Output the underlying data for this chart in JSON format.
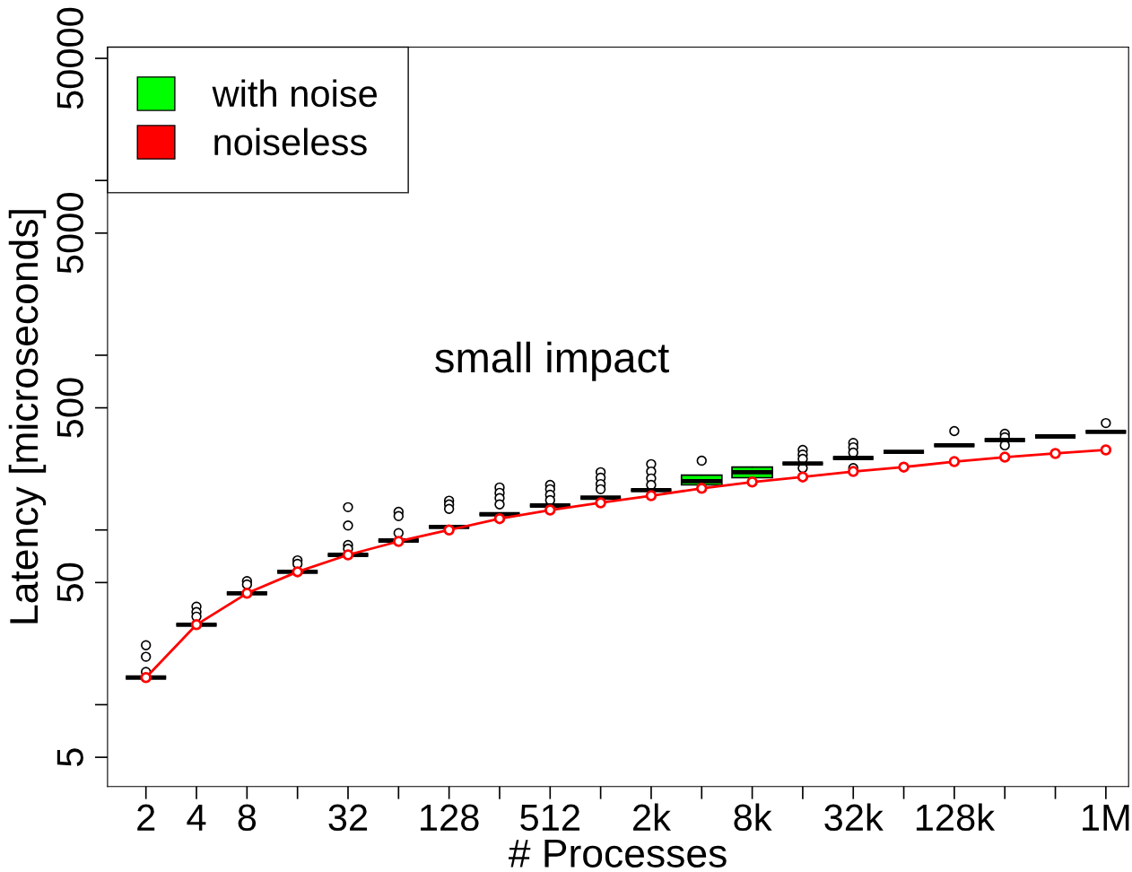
{
  "chart_data": {
    "type": "box",
    "xlabel": "# Processes",
    "ylabel": "Latency [microseconds]",
    "annotations": [
      "small impact"
    ],
    "categories": [
      "2",
      "4",
      "8",
      null,
      "32",
      null,
      "128",
      null,
      "512",
      null,
      "2k",
      null,
      "8k",
      null,
      "32k",
      null,
      "128k",
      null,
      null,
      "1M"
    ],
    "log": true,
    "ylim": [
      3.4,
      58000
    ],
    "yticks": [
      5,
      {
        "value": 10,
        "label": null
      },
      50,
      {
        "value": 100,
        "label": null
      },
      500,
      {
        "value": 1000,
        "label": null
      },
      5000,
      {
        "value": 10000,
        "label": null
      },
      50000
    ],
    "legend": "top left",
    "grid": false,
    "series": [
      {
        "name": "with noise",
        "color": "#00ff00",
        "colors": [
          "#000000",
          "#000000",
          "#000000",
          "#000000",
          "#000000",
          "#000000",
          "#000000",
          "#000000",
          "#000000",
          "#000000",
          "#000000",
          "#00ff00",
          "#00ff00",
          "#000000",
          "#000000",
          "#000000",
          "#000000",
          "#000000",
          "#000000",
          "#000000"
        ],
        "boxes": [
          {
            "low": 14.3,
            "q1": 14.3,
            "median": 14.3,
            "q3": 14.3,
            "high": 14.3,
            "outliers": [
              21.9,
              18.8,
              15.4
            ]
          },
          {
            "low": 28.7,
            "q1": 28.7,
            "median": 28.7,
            "q3": 28.7,
            "high": 28.7,
            "outliers": [
              36.4,
              33.9,
              31.9
            ]
          },
          {
            "low": 43.4,
            "q1": 43.4,
            "median": 43.4,
            "q3": 43.4,
            "high": 43.4,
            "outliers": [
              51,
              48.8
            ]
          },
          {
            "low": 57.6,
            "q1": 57.6,
            "median": 57.6,
            "q3": 57.6,
            "high": 57.6,
            "outliers": [
              67,
              64
            ]
          },
          {
            "low": 72,
            "q1": 72,
            "median": 72,
            "q3": 72,
            "high": 72,
            "outliers": [
              135,
              106,
              82,
              78
            ]
          },
          {
            "low": 87,
            "q1": 87,
            "median": 87,
            "q3": 87,
            "high": 87,
            "outliers": [
              127,
              120,
              96
            ]
          },
          {
            "low": 104,
            "q1": 104,
            "median": 104,
            "q3": 104,
            "high": 104,
            "outliers": [
              147,
              140,
              132
            ]
          },
          {
            "low": 123,
            "q1": 123,
            "median": 123,
            "q3": 123,
            "high": 123,
            "outliers": [
              175,
              163,
              152,
              140
            ]
          },
          {
            "low": 138,
            "q1": 138,
            "median": 138,
            "q3": 138,
            "high": 138,
            "outliers": [
              181,
              171,
              159,
              148
            ]
          },
          {
            "low": 153,
            "q1": 153,
            "median": 153,
            "q3": 153,
            "high": 153,
            "outliers": [
              214,
              199,
              183,
              171
            ]
          },
          {
            "low": 169,
            "q1": 169,
            "median": 169,
            "q3": 169,
            "high": 169,
            "outliers": [
              238,
              216,
              197,
              181
            ]
          },
          {
            "low": 181,
            "q1": 181,
            "median": 190,
            "q3": 206,
            "high": 206,
            "outliers": [
              249
            ]
          },
          {
            "low": 199,
            "q1": 199,
            "median": 214,
            "q3": 229,
            "high": 229
          },
          {
            "low": 240,
            "q1": 240,
            "median": 240,
            "q3": 240,
            "high": 240,
            "outliers": [
              287,
              270,
              255,
              226
            ]
          },
          {
            "low": 258,
            "q1": 258,
            "median": 258,
            "q3": 258,
            "high": 258,
            "outliers": [
              315,
              297,
              277,
              226
            ]
          },
          {
            "low": 280,
            "q1": 280,
            "median": 280,
            "q3": 280,
            "high": 280
          },
          {
            "low": 305,
            "q1": 305,
            "median": 305,
            "q3": 305,
            "high": 305,
            "outliers": [
              368
            ]
          },
          {
            "low": 327,
            "q1": 327,
            "median": 327,
            "q3": 327,
            "high": 327,
            "outliers": [
              355,
              339,
              305
            ]
          },
          {
            "low": 343,
            "q1": 343,
            "median": 343,
            "q3": 343,
            "high": 343
          },
          {
            "low": 364,
            "q1": 364,
            "median": 364,
            "q3": 364,
            "high": 364,
            "outliers": [
              409
            ]
          }
        ]
      },
      {
        "name": "noiseless",
        "type": "line",
        "color": "#ff0000",
        "marker": "circle",
        "values": [
          14.3,
          28.7,
          43.4,
          57.6,
          72,
          86,
          100,
          116,
          130,
          143,
          157,
          173,
          188,
          201,
          216,
          229,
          246,
          261,
          274,
          287
        ]
      }
    ]
  }
}
